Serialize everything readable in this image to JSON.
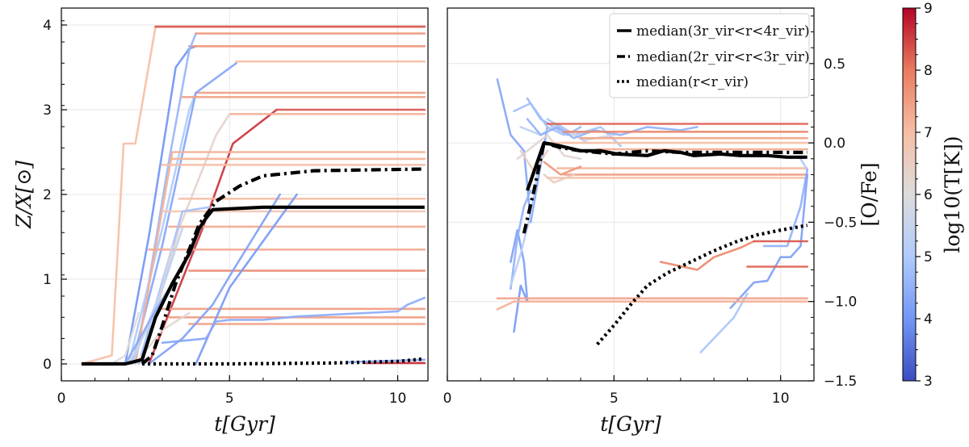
{
  "chart_data": [
    {
      "type": "line",
      "xlabel": "t[Gyr]",
      "ylabel": "Z/X[⊙]",
      "xlim": [
        0,
        10.9
      ],
      "ylim": [
        -0.2,
        4.2
      ],
      "xticks": [
        0,
        5,
        10
      ],
      "yticks": [
        0,
        1,
        2,
        3,
        4
      ],
      "grid": true,
      "median_series": [
        {
          "name": "median(3r_vir<r<4r_vir)",
          "style": "solid",
          "x": [
            0.6,
            1.9,
            2.4,
            2.8,
            3.3,
            3.8,
            4.1,
            4.3,
            4.5,
            6.0,
            10.8
          ],
          "y": [
            0,
            0,
            0.05,
            0.55,
            0.95,
            1.3,
            1.6,
            1.72,
            1.82,
            1.85,
            1.85
          ]
        },
        {
          "name": "median(2r_vir<r<3r_vir)",
          "style": "dashdot",
          "x": [
            2.4,
            2.7,
            3.0,
            3.4,
            3.8,
            4.1,
            4.6,
            5.3,
            6.0,
            7.5,
            10.8
          ],
          "y": [
            0,
            0.1,
            0.45,
            0.95,
            1.35,
            1.65,
            1.92,
            2.1,
            2.22,
            2.28,
            2.3
          ]
        },
        {
          "name": "median(r<r_vir)",
          "style": "dotted",
          "x": [
            2.4,
            5,
            8,
            10,
            10.8
          ],
          "y": [
            0,
            0,
            0.01,
            0.03,
            0.06
          ]
        }
      ],
      "tracks": [
        {
          "logT": 7.0,
          "x": [
            0.6,
            1.5,
            1.85,
            2.2,
            2.8,
            10.8
          ],
          "y": [
            0,
            0.1,
            2.6,
            2.6,
            3.98,
            3.98
          ]
        },
        {
          "logT": 8.3,
          "x": [
            2.8,
            10.8
          ],
          "y": [
            3.98,
            3.98
          ]
        },
        {
          "logT": 4.0,
          "x": [
            1.9,
            2.6,
            3.4,
            3.8,
            4.0
          ],
          "y": [
            0,
            1.5,
            3.5,
            3.72,
            3.75
          ]
        },
        {
          "logT": 7.6,
          "x": [
            3.8,
            10.8
          ],
          "y": [
            3.75,
            3.75
          ]
        },
        {
          "logT": 4.6,
          "x": [
            2.2,
            3.2,
            3.8,
            4.0
          ],
          "y": [
            0,
            2.4,
            3.7,
            3.9
          ]
        },
        {
          "logT": 7.6,
          "x": [
            4.0,
            10.8
          ],
          "y": [
            3.9,
            3.9
          ]
        },
        {
          "logT": 5.0,
          "x": [
            2.0,
            3.0,
            3.8,
            4.0
          ],
          "y": [
            0,
            1.6,
            3.0,
            3.2
          ]
        },
        {
          "logT": 7.5,
          "x": [
            4.0,
            10.8
          ],
          "y": [
            3.2,
            3.2
          ]
        },
        {
          "logT": 4.3,
          "x": [
            2.1,
            3.0,
            4.0,
            5.2
          ],
          "y": [
            0,
            1.4,
            3.2,
            3.55
          ]
        },
        {
          "logT": 7.0,
          "x": [
            5.2,
            10.8
          ],
          "y": [
            3.57,
            3.57
          ]
        },
        {
          "logT": 7.4,
          "x": [
            3.6,
            10.8
          ],
          "y": [
            3.15,
            3.15
          ]
        },
        {
          "logT": 8.6,
          "x": [
            2.6,
            4.2,
            5.1,
            6.4
          ],
          "y": [
            0,
            1.6,
            2.6,
            3.0
          ]
        },
        {
          "logT": 8.3,
          "x": [
            6.4,
            10.8
          ],
          "y": [
            3.0,
            3.0
          ]
        },
        {
          "logT": 7.2,
          "x": [
            5.0,
            7.6,
            10.8
          ],
          "y": [
            2.95,
            2.95,
            2.95
          ]
        },
        {
          "logT": 6.3,
          "x": [
            2.4,
            3.5,
            4.6,
            5.0
          ],
          "y": [
            0,
            1.6,
            2.7,
            2.95
          ]
        },
        {
          "logT": 7.2,
          "x": [
            2.2,
            3.3,
            10.8
          ],
          "y": [
            0,
            2.5,
            2.5
          ]
        },
        {
          "logT": 7.2,
          "x": [
            3.3,
            10.8
          ],
          "y": [
            2.42,
            2.42
          ]
        },
        {
          "logT": 7.0,
          "x": [
            3.0,
            10.8
          ],
          "y": [
            2.35,
            2.35
          ]
        },
        {
          "logT": 7.0,
          "x": [
            3.5,
            10.8
          ],
          "y": [
            1.95,
            1.95
          ]
        },
        {
          "logT": 6.8,
          "x": [
            3.0,
            10.8
          ],
          "y": [
            1.8,
            1.8
          ]
        },
        {
          "logT": 7.3,
          "x": [
            3.2,
            10.8
          ],
          "y": [
            1.62,
            1.62
          ]
        },
        {
          "logT": 7.3,
          "x": [
            2.6,
            10.8
          ],
          "y": [
            1.35,
            1.35
          ]
        },
        {
          "logT": 7.8,
          "x": [
            3.8,
            10.8
          ],
          "y": [
            1.1,
            1.1
          ]
        },
        {
          "logT": 7.5,
          "x": [
            3.0,
            10.8
          ],
          "y": [
            0.65,
            0.65
          ]
        },
        {
          "logT": 7.5,
          "x": [
            3.2,
            10.8
          ],
          "y": [
            0.55,
            0.55
          ]
        },
        {
          "logT": 7.4,
          "x": [
            3.8,
            10.8
          ],
          "y": [
            0.47,
            0.47
          ]
        },
        {
          "logT": 4.2,
          "x": [
            2.6,
            3.6,
            4.5,
            5.1,
            6.5
          ],
          "y": [
            0,
            0.3,
            0.7,
            1.1,
            2.0
          ]
        },
        {
          "logT": 4.1,
          "x": [
            4.0,
            5.0,
            7.0
          ],
          "y": [
            0,
            0.9,
            2.0
          ]
        },
        {
          "logT": 4.8,
          "x": [
            2.3,
            3.6,
            4.4
          ],
          "y": [
            0,
            1.8,
            1.85
          ]
        },
        {
          "logT": 5.3,
          "x": [
            2.1,
            3.1,
            3.6
          ],
          "y": [
            0,
            1.0,
            1.6
          ]
        },
        {
          "logT": 5.6,
          "x": [
            2.0,
            2.8,
            3.3
          ],
          "y": [
            0,
            0.6,
            1.4
          ]
        },
        {
          "logT": 4.4,
          "x": [
            1.9,
            2.9,
            3.7
          ],
          "y": [
            0,
            0.7,
            1.2
          ]
        },
        {
          "logT": 4.4,
          "x": [
            4.3,
            4.6,
            5.0,
            6.0,
            7.0,
            9.0,
            10.0,
            10.3,
            10.8
          ],
          "y": [
            0.3,
            0.5,
            0.52,
            0.52,
            0.56,
            0.6,
            0.62,
            0.7,
            0.78
          ]
        },
        {
          "logT": 4.3,
          "x": [
            3.0,
            4.3
          ],
          "y": [
            0.25,
            0.3
          ]
        },
        {
          "logT": 6.2,
          "x": [
            2.2,
            3.0,
            3.8
          ],
          "y": [
            0,
            0.4,
            0.6
          ]
        },
        {
          "logT": 6.0,
          "x": [
            1.5,
            1.9,
            2.3
          ],
          "y": [
            0,
            0.1,
            0.6
          ]
        },
        {
          "logT": 8.7,
          "x": [
            9.0,
            10.8
          ],
          "y": [
            0.01,
            0.01
          ]
        },
        {
          "logT": 4.3,
          "x": [
            8.5,
            10.8
          ],
          "y": [
            0.02,
            0.05
          ]
        }
      ]
    },
    {
      "type": "line",
      "xlabel": "t[Gyr]",
      "ylabel": "[O/Fe]",
      "xlim": [
        0,
        11.0
      ],
      "ylim": [
        -1.5,
        0.85
      ],
      "xticks": [
        0,
        5,
        10
      ],
      "yticks": [
        0.5,
        0.0,
        -0.5,
        -1.0,
        -1.5
      ],
      "ytick_labels": [
        "0.5",
        "0.0",
        "−0.5",
        "−1.0",
        "−1.5"
      ],
      "grid": true,
      "legend_position": "top-right",
      "median_series": [
        {
          "name": "median(3r_vir<r<4r_vir)",
          "style": "solid",
          "x": [
            2.4,
            2.9,
            3.4,
            4.0,
            4.6,
            5.1,
            6.0,
            6.5,
            7.0,
            7.4,
            8.2,
            8.8,
            9.6,
            10.2,
            10.5,
            10.8
          ],
          "y": [
            -0.3,
            0.0,
            -0.02,
            -0.05,
            -0.05,
            -0.07,
            -0.08,
            -0.05,
            -0.06,
            -0.08,
            -0.07,
            -0.08,
            -0.08,
            -0.09,
            -0.09,
            -0.09
          ]
        },
        {
          "name": "median(2r_vir<r<3r_vir)",
          "style": "dashdot",
          "x": [
            2.3,
            2.6,
            2.9,
            3.4,
            4.0,
            5.0,
            6.0,
            7.0,
            8.0,
            9.0,
            10.0,
            10.8
          ],
          "y": [
            -0.57,
            -0.3,
            0.0,
            -0.03,
            -0.05,
            -0.07,
            -0.05,
            -0.06,
            -0.06,
            -0.06,
            -0.06,
            -0.06
          ]
        },
        {
          "name": "median(r<r_vir)",
          "style": "dotted",
          "x": [
            4.5,
            5.0,
            5.5,
            6.0,
            6.6,
            7.3,
            8.0,
            8.7,
            9.3,
            10.0,
            10.8
          ],
          "y": [
            -1.27,
            -1.15,
            -1.02,
            -0.9,
            -0.82,
            -0.75,
            -0.68,
            -0.62,
            -0.58,
            -0.55,
            -0.52
          ]
        }
      ],
      "tracks": [
        {
          "logT": 4.3,
          "x": [
            1.5,
            1.9,
            2.3,
            2.5,
            3.0
          ],
          "y": [
            0.4,
            0.05,
            -0.05,
            -0.5,
            0.1
          ]
        },
        {
          "logT": 4.2,
          "x": [
            1.9,
            2.1,
            2.3,
            2.4
          ],
          "y": [
            -0.75,
            -0.55,
            -0.75,
            -1.0
          ]
        },
        {
          "logT": 4.1,
          "x": [
            2.0,
            2.2,
            2.4
          ],
          "y": [
            -1.19,
            -0.9,
            -1.0
          ]
        },
        {
          "logT": 4.5,
          "x": [
            1.9,
            2.1,
            2.3,
            2.5
          ],
          "y": [
            -0.92,
            -0.6,
            -0.4,
            -0.3
          ]
        },
        {
          "logT": 5.2,
          "x": [
            1.9,
            2.2,
            2.5,
            2.7
          ],
          "y": [
            -0.9,
            -0.7,
            -0.45,
            -0.2
          ]
        },
        {
          "logT": 4.6,
          "x": [
            2.4,
            2.8,
            3.2,
            3.6,
            4.0
          ],
          "y": [
            0.28,
            0.15,
            0.1,
            0.05,
            0.1
          ]
        },
        {
          "logT": 4.8,
          "x": [
            2.0,
            2.5,
            3.0,
            3.5
          ],
          "y": [
            0.2,
            0.25,
            0.1,
            0.05
          ]
        },
        {
          "logT": 5.3,
          "x": [
            2.2,
            2.8,
            3.3,
            4.2
          ],
          "y": [
            0.1,
            0.05,
            0.12,
            0.0
          ]
        },
        {
          "logT": 4.9,
          "x": [
            3.0,
            3.8,
            4.6,
            5.2
          ],
          "y": [
            0.15,
            0.05,
            0.1,
            -0.02
          ]
        },
        {
          "logT": 6.2,
          "x": [
            2.1,
            3.0,
            3.5,
            4.0
          ],
          "y": [
            -0.1,
            0.05,
            -0.08,
            -0.1
          ]
        },
        {
          "logT": 5.8,
          "x": [
            3.4,
            4.2,
            5.0
          ],
          "y": [
            0.08,
            0.02,
            0.05
          ]
        },
        {
          "logT": 4.5,
          "x": [
            2.4,
            2.8,
            3.3,
            3.8,
            4.4,
            5.2,
            6.0,
            7.0,
            7.5
          ],
          "y": [
            0.15,
            0.05,
            0.1,
            0.03,
            0.08,
            0.05,
            0.1,
            0.08,
            0.1
          ]
        },
        {
          "logT": 8.2,
          "x": [
            3.0,
            10.8
          ],
          "y": [
            0.12,
            0.12
          ]
        },
        {
          "logT": 7.8,
          "x": [
            3.5,
            10.8
          ],
          "y": [
            0.07,
            0.07
          ]
        },
        {
          "logT": 7.4,
          "x": [
            4.0,
            10.8
          ],
          "y": [
            0.03,
            0.03
          ]
        },
        {
          "logT": 7.0,
          "x": [
            3.0,
            10.8
          ],
          "y": [
            0.0,
            0.0
          ]
        },
        {
          "logT": 7.3,
          "x": [
            4.5,
            10.8
          ],
          "y": [
            -0.04,
            -0.04
          ]
        },
        {
          "logT": 7.1,
          "x": [
            3.3,
            10.8
          ],
          "y": [
            -0.16,
            -0.16
          ]
        },
        {
          "logT": 7.5,
          "x": [
            3.5,
            10.8
          ],
          "y": [
            -0.2,
            -0.2
          ]
        },
        {
          "logT": 6.9,
          "x": [
            3.0,
            10.8
          ],
          "y": [
            -0.22,
            -0.22
          ]
        },
        {
          "logT": 6.6,
          "x": [
            2.9,
            3.2,
            3.8
          ],
          "y": [
            -0.2,
            -0.25,
            -0.2
          ]
        },
        {
          "logT": 7.6,
          "x": [
            2.9,
            3.4,
            4.0
          ],
          "y": [
            -0.12,
            -0.2,
            -0.15
          ]
        },
        {
          "logT": 6.5,
          "x": [
            2.2,
            2.6,
            3.0
          ],
          "y": [
            -0.05,
            -0.18,
            -0.05
          ]
        },
        {
          "logT": 5.0,
          "x": [
            10.6,
            10.8
          ],
          "y": [
            -0.1,
            -0.17
          ]
        },
        {
          "logT": 4.5,
          "x": [
            9.5,
            10.2,
            10.6,
            10.8
          ],
          "y": [
            -0.65,
            -0.65,
            -0.4,
            -0.17
          ]
        },
        {
          "logT": 4.2,
          "x": [
            8.5,
            9.2,
            9.6,
            10.0,
            10.3,
            10.6,
            10.8
          ],
          "y": [
            -1.04,
            -0.88,
            -0.87,
            -0.72,
            -0.72,
            -0.65,
            -0.2
          ]
        },
        {
          "logT": 4.9,
          "x": [
            7.6,
            8.6,
            9.0
          ],
          "y": [
            -1.32,
            -1.1,
            -0.95
          ]
        },
        {
          "logT": 7.8,
          "x": [
            6.4,
            7.5,
            8.0,
            8.8,
            9.2
          ],
          "y": [
            -0.75,
            -0.8,
            -0.72,
            -0.66,
            -0.62
          ]
        },
        {
          "logT": 8.3,
          "x": [
            9.2,
            10.8
          ],
          "y": [
            -0.62,
            -0.62
          ]
        },
        {
          "logT": 8.2,
          "x": [
            9.0,
            10.8
          ],
          "y": [
            -0.78,
            -0.78
          ]
        },
        {
          "logT": 7.4,
          "x": [
            1.5,
            10.8
          ],
          "y": [
            -0.98,
            -0.98
          ]
        },
        {
          "logT": 7.2,
          "x": [
            1.5,
            2.0,
            10.8
          ],
          "y": [
            -1.05,
            -1.0,
            -1.0
          ]
        }
      ]
    }
  ],
  "legend": {
    "entries": [
      {
        "style": "solid",
        "label": "median(3r_vir<r<4r_vir)"
      },
      {
        "style": "dashdot",
        "label": "median(2r_vir<r<3r_vir)"
      },
      {
        "style": "dotted",
        "label": "median(r<r_vir)"
      }
    ]
  },
  "colorbar": {
    "label": "log10(T[K])",
    "min": 3,
    "max": 9,
    "ticks": [
      3,
      4,
      5,
      6,
      7,
      8,
      9
    ],
    "colormap": "coolwarm",
    "colors": [
      "#3b4cc0",
      "#7396f5",
      "#b0cbfc",
      "#dddcdc",
      "#f6bfa6",
      "#ea7b60",
      "#b40426"
    ]
  },
  "colors": {
    "median": "#000000",
    "grid": "#e6e6e6",
    "axes": "#000000"
  }
}
